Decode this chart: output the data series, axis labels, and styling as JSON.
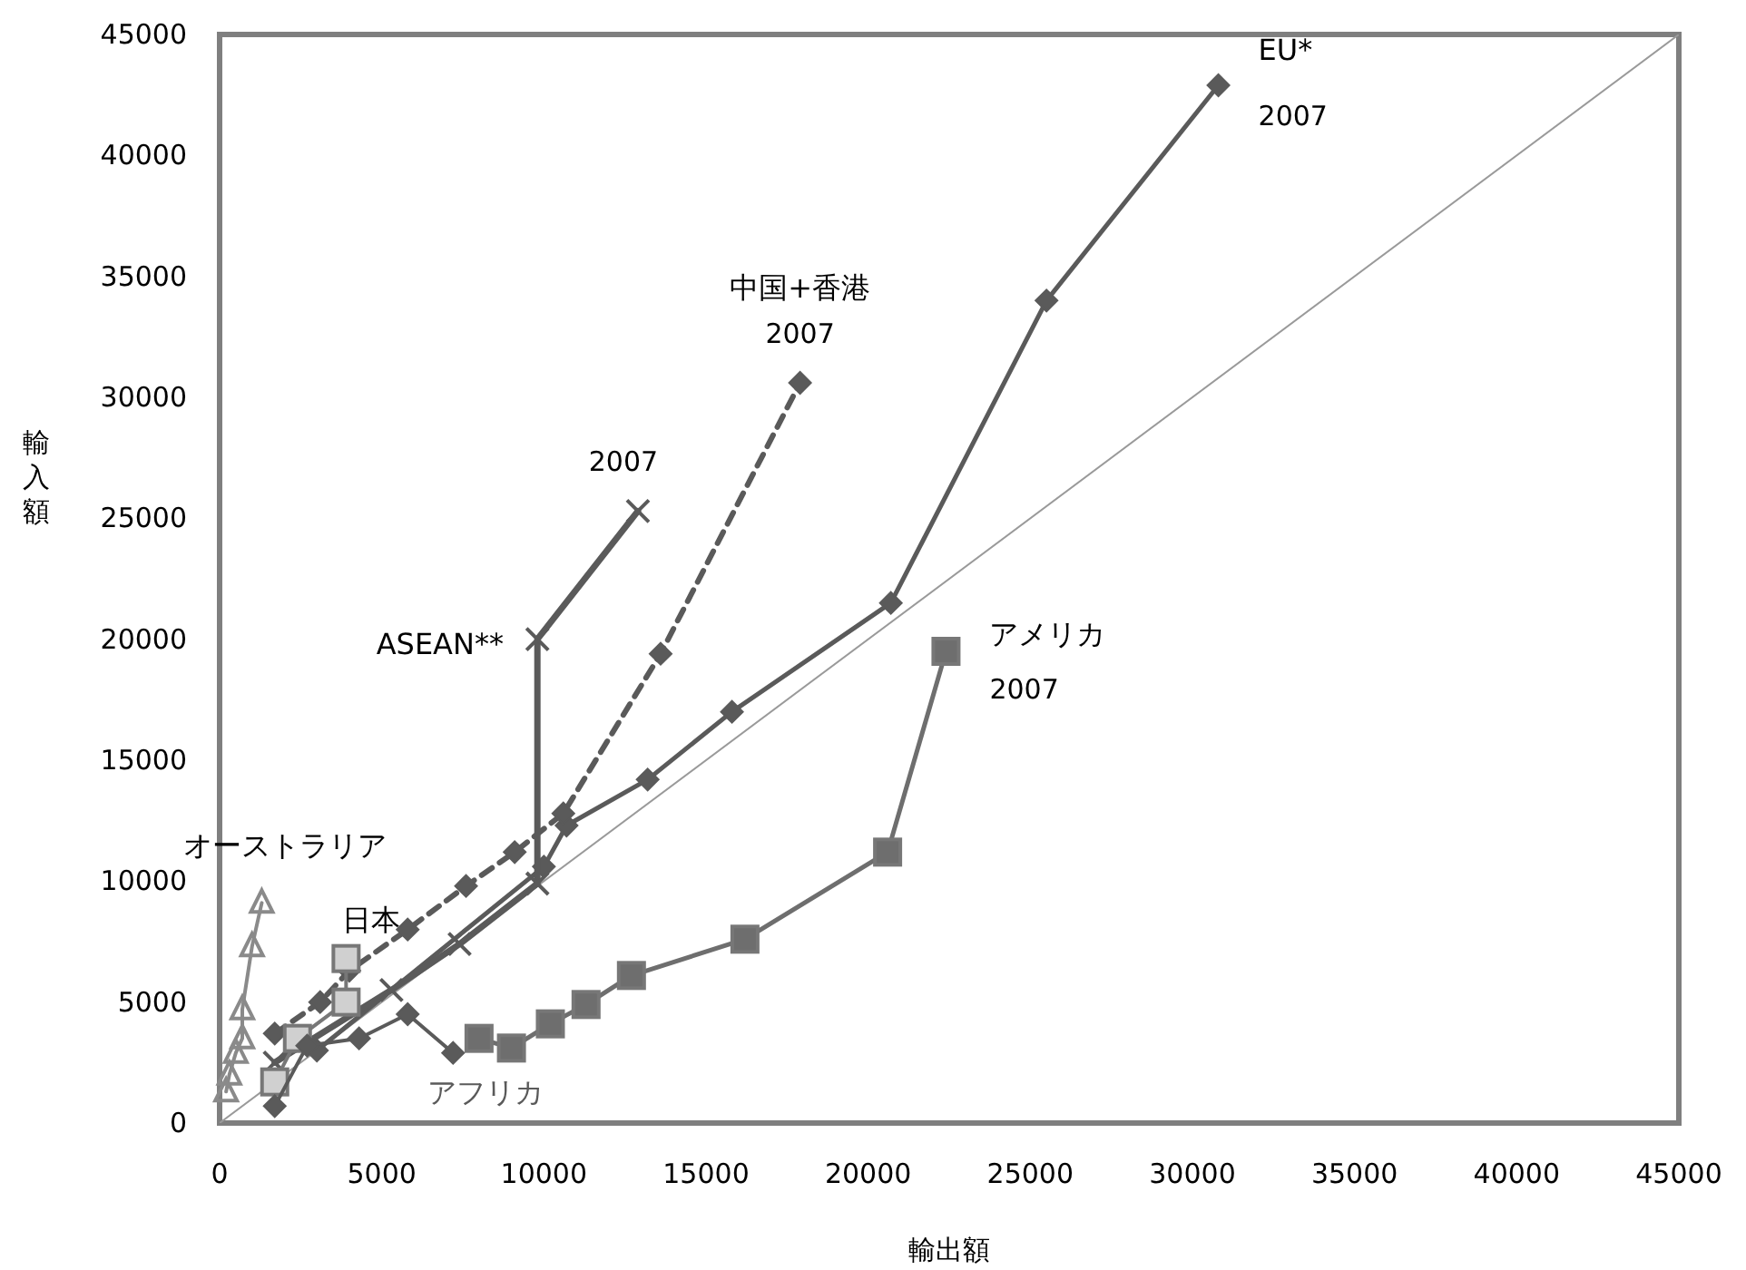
{
  "chart_data": {
    "type": "line",
    "xlabel": "輸出額",
    "ylabel": "輸入額",
    "xlim": [
      0,
      45000
    ],
    "ylim": [
      0,
      45000
    ],
    "xticks": [
      0,
      5000,
      10000,
      15000,
      20000,
      25000,
      30000,
      35000,
      40000,
      45000
    ],
    "yticks": [
      0,
      5000,
      10000,
      15000,
      20000,
      25000,
      30000,
      35000,
      40000,
      45000
    ],
    "grid": false,
    "legend": false,
    "series": [
      {
        "name": "EU*",
        "color": "#5a5a5a",
        "marker": "diamond",
        "line_style": "solid",
        "x": [
          3000,
          10000,
          10700,
          13200,
          15800,
          20700,
          25500,
          30800
        ],
        "values": [
          3000,
          10600,
          12300,
          14200,
          17000,
          21500,
          34000,
          42900
        ]
      },
      {
        "name": "中国+香港",
        "color": "#5a5a5a",
        "marker": "diamond",
        "line_style": "dashed",
        "x": [
          1700,
          3100,
          4000,
          5800,
          7600,
          9100,
          10600,
          13600,
          17900
        ],
        "values": [
          3700,
          5000,
          6300,
          8000,
          9800,
          11200,
          12800,
          19400,
          30600
        ]
      },
      {
        "name": "ASEAN**",
        "color": "#5a5a5a",
        "marker": "cross",
        "line_style": "solid",
        "x": [
          1700,
          5300,
          7400,
          9800,
          9800,
          12900
        ],
        "values": [
          2500,
          5500,
          7400,
          9900,
          20000,
          25300
        ]
      },
      {
        "name": "アメリカ",
        "color": "#6e6e6e",
        "marker": "square",
        "line_style": "solid",
        "x": [
          8000,
          9000,
          10200,
          11300,
          12700,
          16200,
          20600,
          22400
        ],
        "values": [
          3500,
          3100,
          4100,
          4900,
          6100,
          7600,
          11200,
          19500
        ]
      },
      {
        "name": "オーストラリア",
        "color": "#8a8a8a",
        "marker": "triangle",
        "line_style": "solid",
        "x": [
          200,
          300,
          500,
          700,
          700,
          1000,
          1300
        ],
        "values": [
          1300,
          2000,
          2900,
          3500,
          4700,
          7300,
          9100
        ]
      },
      {
        "name": "日本",
        "color": "#d0d0d0",
        "marker": "square",
        "line_style": "solid",
        "x": [
          1700,
          2400,
          3900,
          3900
        ],
        "values": [
          1700,
          3500,
          5000,
          6800
        ]
      },
      {
        "name": "アフリカ",
        "color": "#5a5a5a",
        "marker": "diamond",
        "line_style": "solid",
        "x": [
          1700,
          2700,
          4300,
          5800,
          7200
        ],
        "values": [
          700,
          3200,
          3500,
          4500,
          2900
        ]
      },
      {
        "color": "#9a9a9a",
        "marker": "none",
        "line_style": "solid",
        "x": [
          0,
          45000
        ],
        "values": [
          0,
          45000
        ]
      }
    ],
    "annotations": [
      {
        "text": "2007",
        "x": 30800,
        "y": 42900
      },
      {
        "text": "2007",
        "x": 17900,
        "y": 30600
      },
      {
        "text": "2007",
        "x": 12900,
        "y": 25300
      },
      {
        "text": "2007",
        "x": 22400,
        "y": 19500
      }
    ]
  }
}
